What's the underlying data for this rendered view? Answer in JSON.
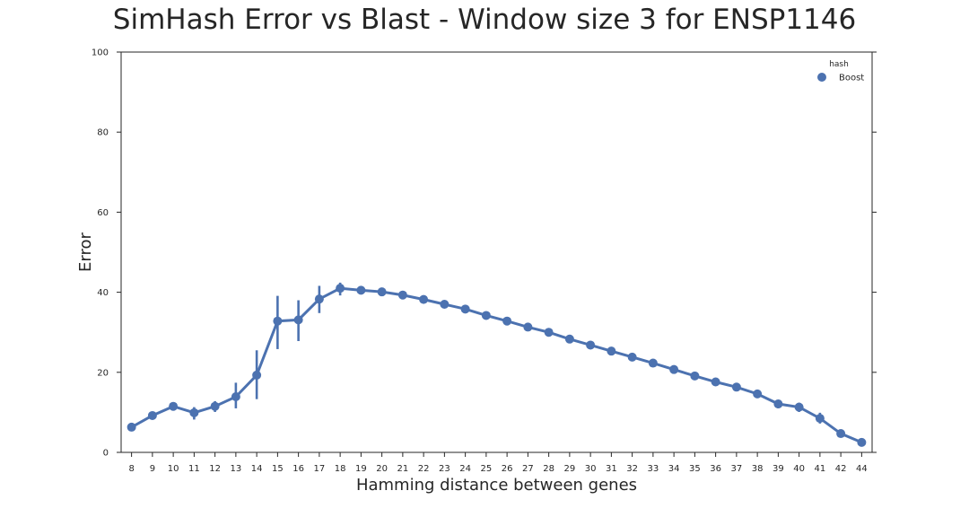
{
  "chart_data": {
    "type": "line",
    "title": "SimHash Error vs Blast - Window size 3 for ENSP1146",
    "xlabel": "Hamming distance between genes",
    "ylabel": "Error",
    "ylim": [
      0,
      100
    ],
    "yticks": [
      0,
      20,
      40,
      60,
      80,
      100
    ],
    "grid": false,
    "legend": {
      "title": "hash",
      "placement": "top-right"
    },
    "categories": [
      "8",
      "9",
      "10",
      "11",
      "12",
      "13",
      "14",
      "15",
      "16",
      "17",
      "18",
      "19",
      "20",
      "21",
      "22",
      "23",
      "24",
      "25",
      "26",
      "27",
      "28",
      "29",
      "30",
      "31",
      "32",
      "33",
      "34",
      "35",
      "36",
      "37",
      "38",
      "39",
      "40",
      "41",
      "42",
      "44"
    ],
    "series": [
      {
        "name": "Boost",
        "color": "#4c72b0",
        "values": [
          6.3,
          9.2,
          11.5,
          9.9,
          11.5,
          13.9,
          19.3,
          32.8,
          33.1,
          38.3,
          41.0,
          40.5,
          40.1,
          39.3,
          38.2,
          37.0,
          35.8,
          34.2,
          32.8,
          31.3,
          30.0,
          28.3,
          26.8,
          25.3,
          23.8,
          22.3,
          20.7,
          19.1,
          17.6,
          16.3,
          14.6,
          12.1,
          11.3,
          8.5,
          4.7,
          2.5
        ],
        "err_low": [
          5.3,
          8.9,
          11.2,
          8.2,
          10.1,
          11.0,
          13.3,
          25.8,
          27.8,
          34.8,
          39.2,
          40.0,
          39.7,
          38.9,
          37.8,
          36.7,
          35.5,
          33.9,
          32.5,
          31.0,
          29.7,
          28.0,
          26.5,
          25.0,
          23.5,
          22.0,
          20.3,
          18.7,
          17.2,
          15.9,
          14.2,
          11.0,
          10.1,
          7.2,
          4.3,
          2.1
        ],
        "err_high": [
          7.4,
          9.5,
          11.8,
          11.3,
          12.8,
          17.4,
          25.5,
          39.1,
          38.0,
          41.6,
          42.4,
          41.0,
          40.5,
          39.7,
          38.6,
          37.4,
          36.2,
          34.6,
          33.2,
          31.7,
          30.4,
          28.7,
          27.2,
          25.7,
          24.2,
          22.7,
          21.1,
          19.5,
          18.0,
          16.7,
          15.0,
          13.1,
          12.4,
          9.9,
          5.1,
          2.9
        ]
      }
    ]
  }
}
